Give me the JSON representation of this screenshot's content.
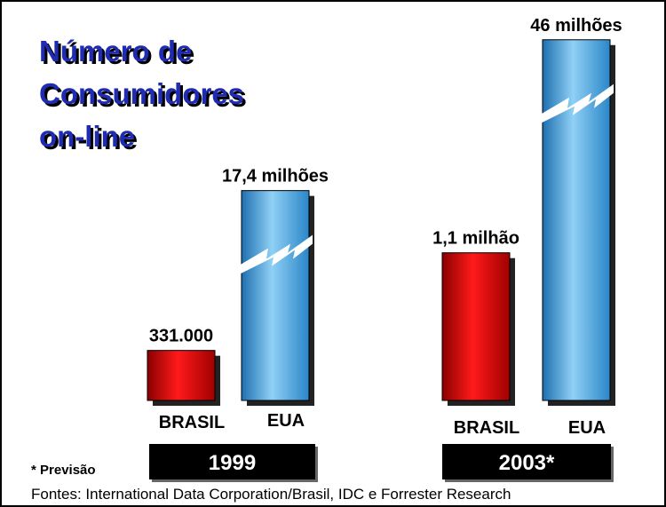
{
  "chart_data": {
    "type": "bar",
    "title": [
      "Número de",
      "Consumidores",
      "on-line"
    ],
    "categories": [
      "1999",
      "2003*"
    ],
    "series": [
      {
        "name": "BRASIL",
        "color": "#e00000",
        "values": [
          331000,
          1100000
        ],
        "value_labels": [
          "331.000",
          "1,1 milhão"
        ]
      },
      {
        "name": "EUA",
        "color": "#3aa0e0",
        "values": [
          17400000,
          46000000
        ],
        "value_labels": [
          "17,4 milhões",
          "46 milhões"
        ]
      }
    ],
    "note": "* Previsão",
    "source": "Fontes: International Data Corporation/Brasil, IDC e Forrester Research"
  }
}
